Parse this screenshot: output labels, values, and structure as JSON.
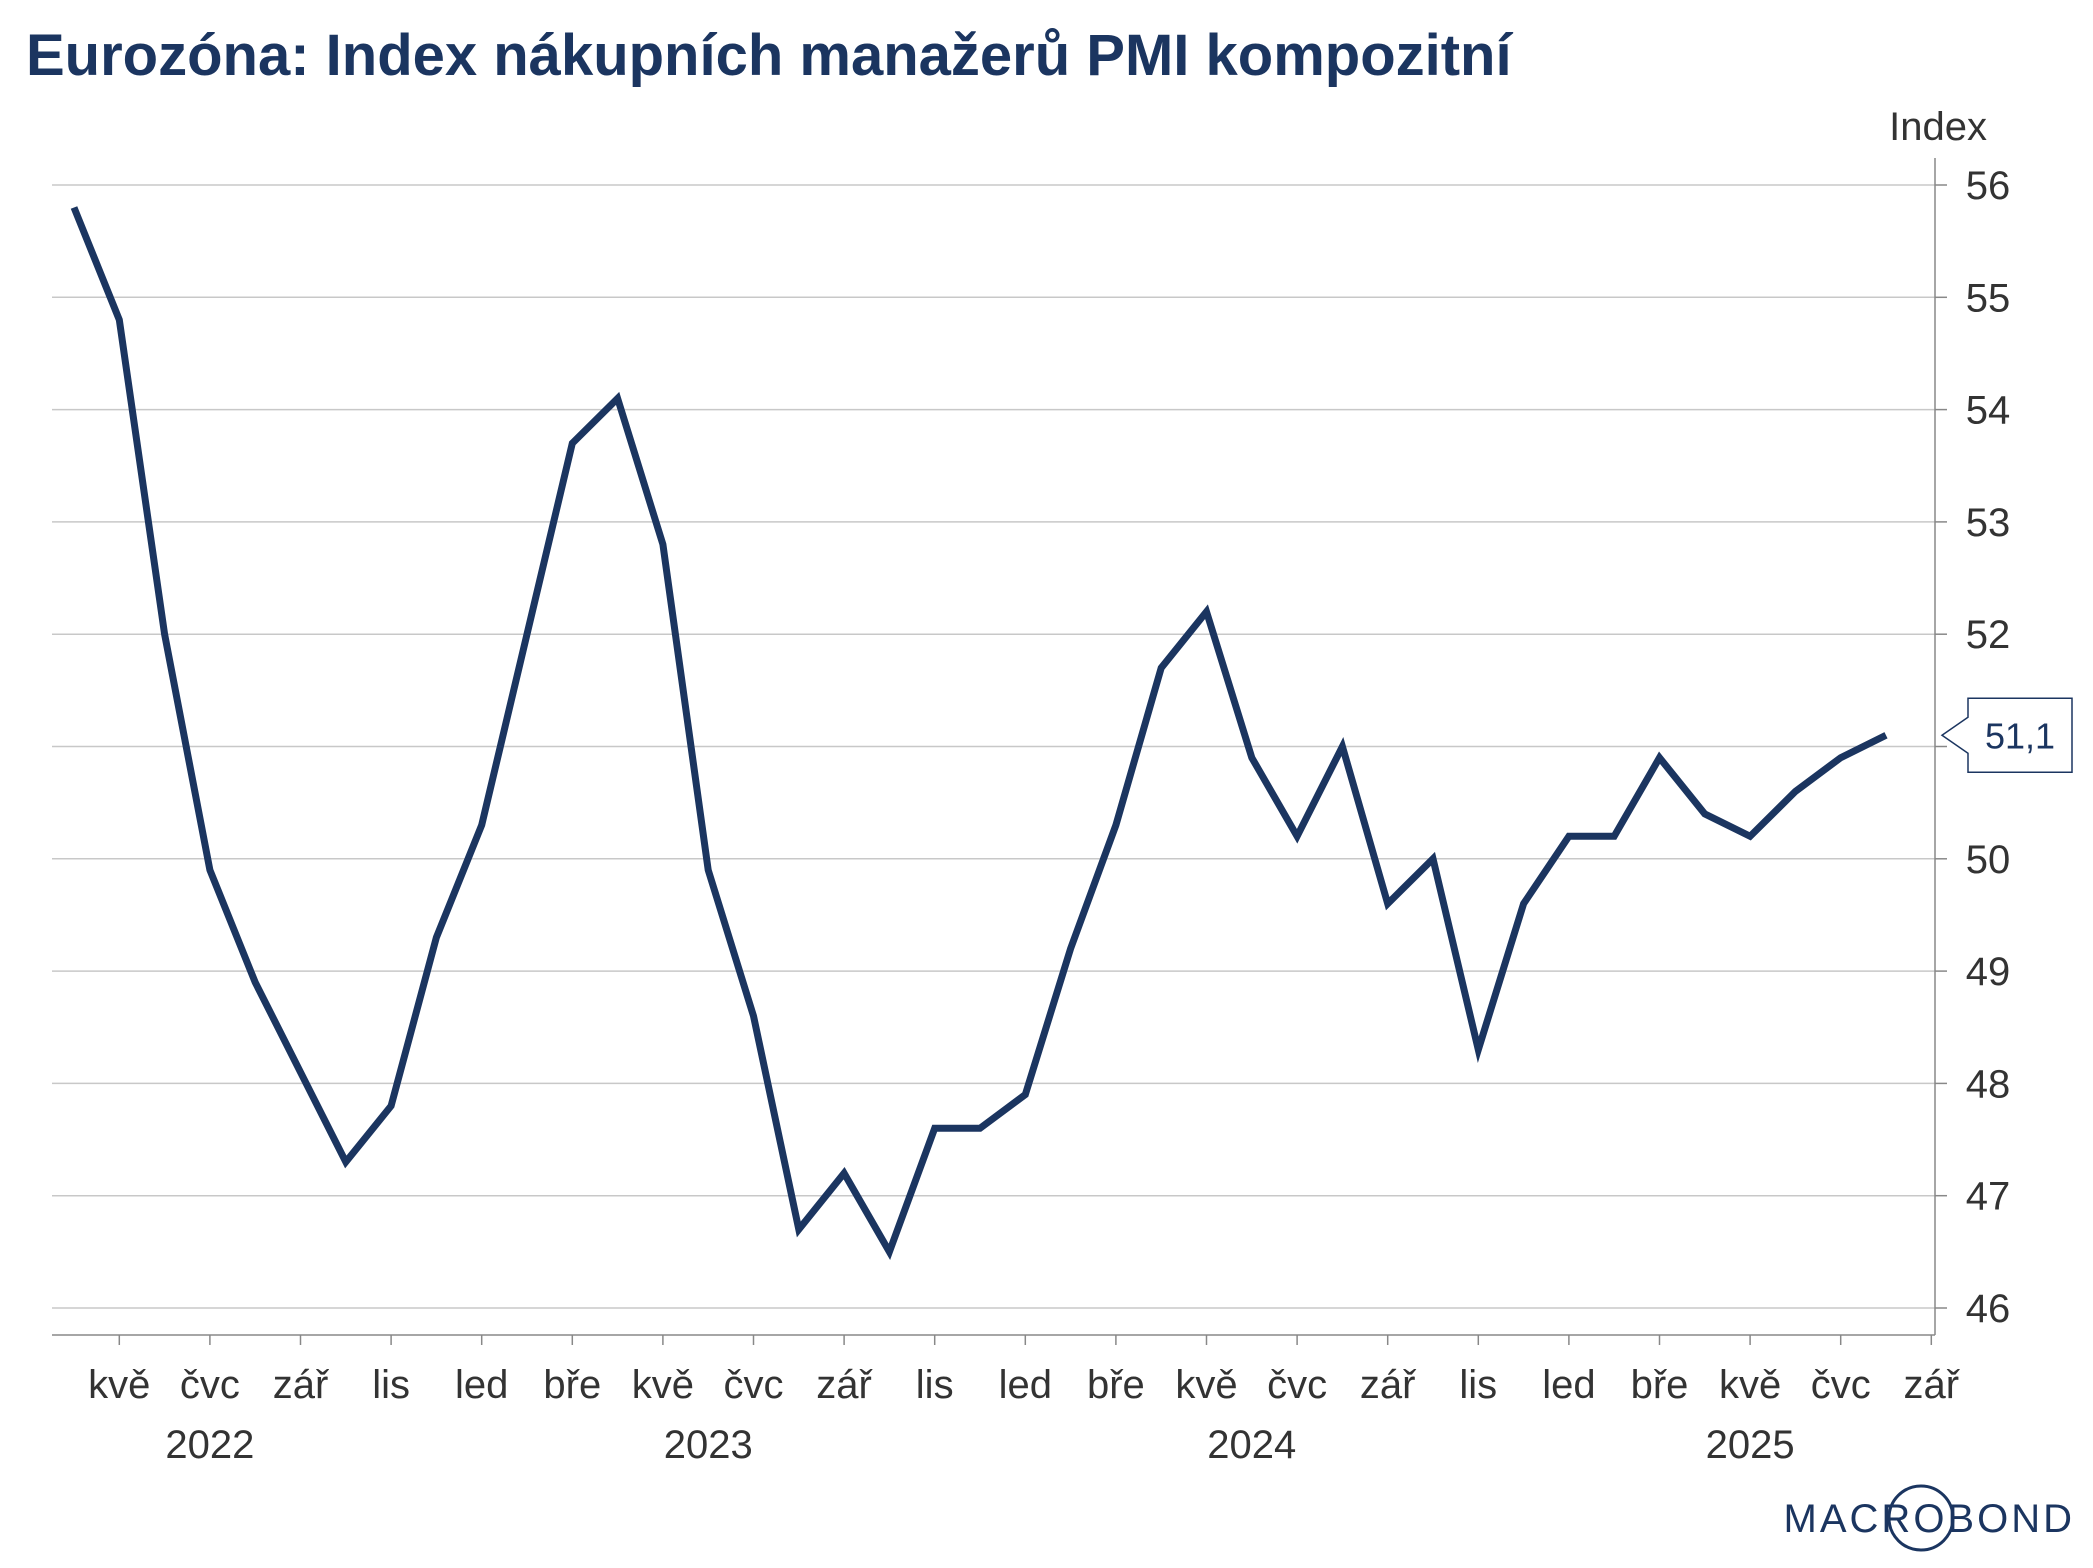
{
  "chart_data": {
    "type": "line",
    "title": "Eurozóna: Index nákupních manažerů PMI kompozitní",
    "ylabel": "Index",
    "ylim": [
      46,
      56
    ],
    "yticks": [
      46,
      47,
      48,
      49,
      50,
      51,
      52,
      53,
      54,
      55,
      56
    ],
    "x": [
      "2022-04",
      "2022-05",
      "2022-06",
      "2022-07",
      "2022-08",
      "2022-09",
      "2022-10",
      "2022-11",
      "2022-12",
      "2023-01",
      "2023-02",
      "2023-03",
      "2023-04",
      "2023-05",
      "2023-06",
      "2023-07",
      "2023-08",
      "2023-09",
      "2023-10",
      "2023-11",
      "2023-12",
      "2024-01",
      "2024-02",
      "2024-03",
      "2024-04",
      "2024-05",
      "2024-06",
      "2024-07",
      "2024-08",
      "2024-09",
      "2024-10",
      "2024-11",
      "2024-12",
      "2025-01",
      "2025-02",
      "2025-03",
      "2025-04",
      "2025-05",
      "2025-06",
      "2025-07",
      "2025-08"
    ],
    "series": [
      {
        "values": [
          55.8,
          54.8,
          52.0,
          49.9,
          48.9,
          48.1,
          47.3,
          47.8,
          49.3,
          50.3,
          52.0,
          53.7,
          54.1,
          52.8,
          49.9,
          48.6,
          46.7,
          47.2,
          46.5,
          47.6,
          47.6,
          47.9,
          49.2,
          50.3,
          51.7,
          52.2,
          50.9,
          50.2,
          51.0,
          49.6,
          50.0,
          48.3,
          49.6,
          50.2,
          50.2,
          50.9,
          50.4,
          50.2,
          50.6,
          50.9,
          51.1
        ],
        "color": "#1b3560"
      }
    ],
    "last_value_label": "51,1",
    "xtick_labels": [
      "kvě",
      "čvc",
      "zář",
      "lis",
      "led",
      "bře",
      "kvě",
      "čvc",
      "zář",
      "lis",
      "led",
      "bře",
      "kvě",
      "čvc",
      "zář",
      "lis",
      "led",
      "bře",
      "kvě",
      "čvc",
      "zář"
    ],
    "xtick_months": [
      "2022-05",
      "2022-07",
      "2022-09",
      "2022-11",
      "2023-01",
      "2023-03",
      "2023-05",
      "2023-07",
      "2023-09",
      "2023-11",
      "2024-01",
      "2024-03",
      "2024-05",
      "2024-07",
      "2024-09",
      "2024-11",
      "2025-01",
      "2025-03",
      "2025-05",
      "2025-07",
      "2025-09"
    ],
    "year_labels": [
      {
        "label": "2022",
        "center": "2022-07"
      },
      {
        "label": "2023",
        "center": "2023-06"
      },
      {
        "label": "2024",
        "center": "2024-06"
      },
      {
        "label": "2025",
        "center": "2025-05"
      }
    ],
    "grid": true,
    "y_axis_side": "right"
  },
  "brand": {
    "text": "MACROBOND",
    "color": "#1b3560"
  }
}
